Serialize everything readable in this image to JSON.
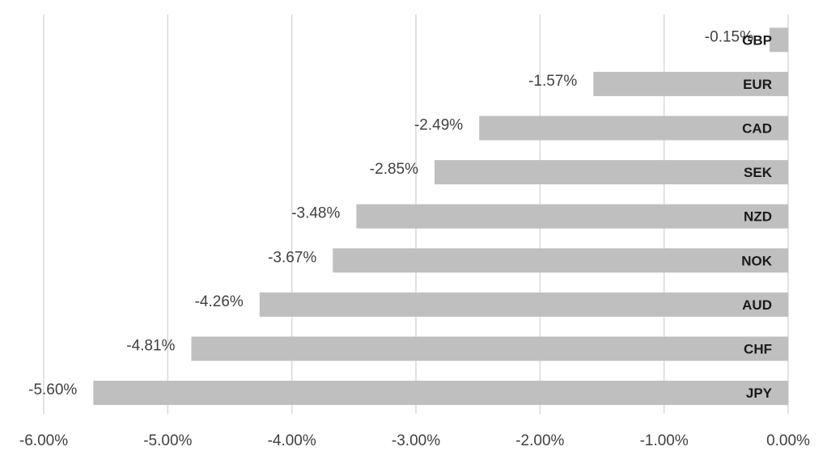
{
  "chart_data": {
    "type": "bar",
    "orientation": "horizontal",
    "categories": [
      "GBP",
      "EUR",
      "CAD",
      "SEK",
      "NZD",
      "NOK",
      "AUD",
      "CHF",
      "JPY"
    ],
    "values": [
      -0.15,
      -1.57,
      -2.49,
      -2.85,
      -3.48,
      -3.67,
      -4.26,
      -4.81,
      -5.6
    ],
    "data_labels": [
      "-0.15%",
      "-1.57%",
      "-2.49%",
      "-2.85%",
      "-3.48%",
      "-3.67%",
      "-4.26%",
      "-4.81%",
      "-5.60%"
    ],
    "x_ticks": [
      -6,
      -5,
      -4,
      -3,
      -2,
      -1,
      0
    ],
    "x_tick_labels": [
      "-6.00%",
      "-5.00%",
      "-4.00%",
      "-3.00%",
      "-2.00%",
      "-1.00%",
      "0.00%"
    ],
    "xlim": [
      -6,
      0
    ],
    "title": "",
    "xlabel": "",
    "ylabel": "",
    "grid": "vertical",
    "legend": "none",
    "bar_color": "#bfbfbf",
    "grid_color": "#d9d9d9"
  }
}
